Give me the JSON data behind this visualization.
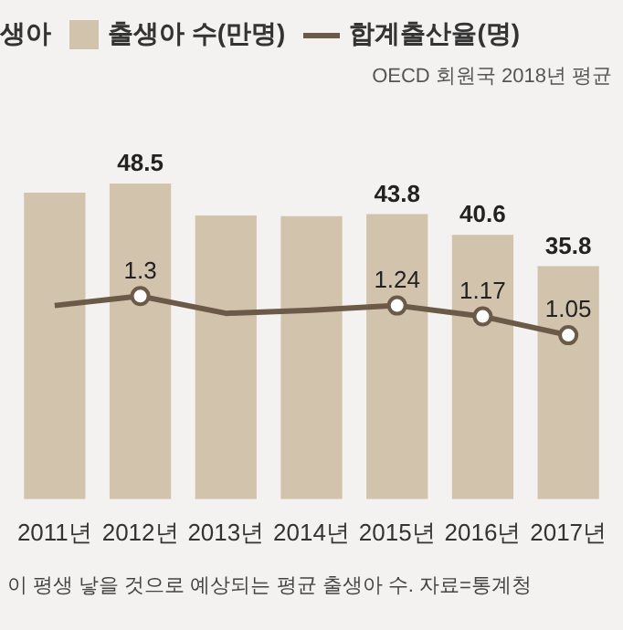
{
  "chart_data": {
    "type": "bar",
    "title": "생아",
    "subtitle": "OECD 회원국 2018년 평균",
    "annotations": [
      "이 평생 낳을 것으로 예상되는 평균 출생아 수. 자료=통계청"
    ],
    "categories": [
      "2011년",
      "2012년",
      "2013년",
      "2014년",
      "2015년",
      "2016년",
      "2017년"
    ],
    "series": [
      {
        "name": "출생아 수(만명)",
        "type": "bar",
        "color": "#d2c3ad",
        "values": [
          47.1,
          48.5,
          43.6,
          43.5,
          43.8,
          40.6,
          35.8
        ],
        "value_labels": [
          null,
          "48.5",
          null,
          null,
          "43.8",
          "40.6",
          "35.8"
        ]
      },
      {
        "name": "합계출산율(명)",
        "type": "line",
        "axis": "y2",
        "color": "#6b5a48",
        "values": [
          1.24,
          1.3,
          1.19,
          1.21,
          1.24,
          1.17,
          1.05
        ],
        "value_labels": [
          null,
          "1.3",
          null,
          null,
          "1.24",
          "1.17",
          "1.05"
        ]
      }
    ],
    "tick_labels": "x",
    "legend": "top",
    "marker": "circle",
    "grid": false
  }
}
